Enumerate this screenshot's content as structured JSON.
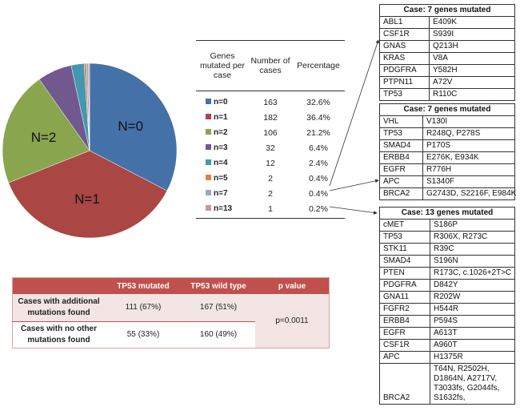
{
  "chart_data": {
    "type": "pie",
    "start": "top",
    "direction": "clockwise",
    "slices": [
      {
        "label": "n=0",
        "slice_label": "N=0",
        "cases": 163,
        "percentage": "32.6%",
        "value": 32.6,
        "color": "#4472a8"
      },
      {
        "label": "n=1",
        "slice_label": "N=1",
        "cases": 182,
        "percentage": "36.4%",
        "value": 36.4,
        "color": "#aa4643"
      },
      {
        "label": "n=2",
        "slice_label": "N=2",
        "cases": 106,
        "percentage": "21.2%",
        "value": 21.2,
        "color": "#89a54e"
      },
      {
        "label": "n=3",
        "slice_label": "",
        "cases": 32,
        "percentage": "6.4%",
        "value": 6.4,
        "color": "#71588f"
      },
      {
        "label": "n=4",
        "slice_label": "",
        "cases": 12,
        "percentage": "2.4%",
        "value": 2.4,
        "color": "#4198af"
      },
      {
        "label": "n=5",
        "slice_label": "",
        "cases": 2,
        "percentage": "0.4%",
        "value": 0.4,
        "color": "#db843d"
      },
      {
        "label": "n=7",
        "slice_label": "",
        "cases": 2,
        "percentage": "0.4%",
        "value": 0.4,
        "color": "#93a9cf"
      },
      {
        "label": "n=13",
        "slice_label": "",
        "cases": 1,
        "percentage": "0.2%",
        "value": 0.2,
        "color": "#d19392"
      }
    ]
  },
  "summary": {
    "headers": [
      "Genes mutated per case",
      "Number of cases",
      "Percentage"
    ]
  },
  "gene_tables": [
    {
      "title": "Case: 7 genes mutated",
      "rows": [
        [
          "ABL1",
          "E409K"
        ],
        [
          "CSF1R",
          "S939I"
        ],
        [
          "GNAS",
          "Q213H"
        ],
        [
          "KRAS",
          "V8A"
        ],
        [
          "PDGFRA",
          "Y582H"
        ],
        [
          "PTPN11",
          "A72V"
        ],
        [
          "TP53",
          "R110C"
        ]
      ]
    },
    {
      "title": "Case: 7 genes mutated",
      "rows": [
        [
          "VHL",
          "V130I"
        ],
        [
          "TP53",
          "R248Q, P278S"
        ],
        [
          "SMAD4",
          "P170S"
        ],
        [
          "ERBB4",
          "E276K, E934K"
        ],
        [
          "EGFR",
          "R776H"
        ],
        [
          "APC",
          "S1340F"
        ],
        [
          "BRCA2",
          "G2743D, S2216F, E984K"
        ]
      ]
    },
    {
      "title": "Case: 13 genes mutated",
      "rows": [
        [
          "cMET",
          "S186P"
        ],
        [
          "TP53",
          "R306X, R273C"
        ],
        [
          "STK11",
          "R39C"
        ],
        [
          "SMAD4",
          "S196N"
        ],
        [
          "PTEN",
          "R173C, c.1026+2T>C"
        ],
        [
          "PDGFRA",
          "D842Y"
        ],
        [
          "GNA11",
          "R202W"
        ],
        [
          "FGFR2",
          "H544R"
        ],
        [
          "ERBB4",
          "P594S"
        ],
        [
          "EGFR",
          "A613T"
        ],
        [
          "CSF1R",
          "A960T"
        ],
        [
          "APC",
          "H1375R"
        ],
        [
          "BRCA2",
          "T64N, R2502H, D1864N, A2717V, T3033fs, G2044fs, S1632fs,"
        ]
      ]
    }
  ],
  "tp53": {
    "headers": [
      "",
      "TP53 mutated",
      "TP53 wild type",
      "p value"
    ],
    "rows": [
      {
        "label": "Cases with additional mutations found",
        "mutated": "111 (67%)",
        "wild": "167 (51%)"
      },
      {
        "label": "Cases with no other mutations found",
        "mutated": "55 (33%)",
        "wild": "160 (49%)"
      }
    ],
    "p_value": "p=0.0011",
    "header_color": "#c0504d"
  }
}
